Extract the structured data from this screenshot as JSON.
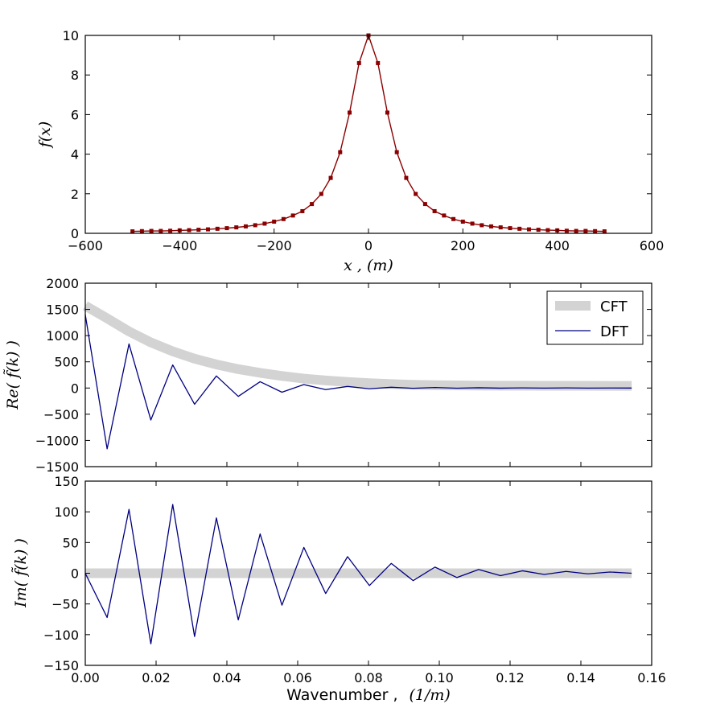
{
  "chart_data": [
    {
      "id": "top",
      "type": "line",
      "xlim": [
        -600,
        600
      ],
      "ylim": [
        0,
        10
      ],
      "xticks": [
        -600,
        -400,
        -200,
        0,
        200,
        400,
        600
      ],
      "yticks": [
        0,
        2,
        4,
        6,
        8,
        10
      ],
      "xtick_labels": [
        "−600",
        "−400",
        "−200",
        "0",
        "200",
        "400",
        "600"
      ],
      "ytick_labels": [
        "0",
        "2",
        "4",
        "6",
        "8",
        "10"
      ],
      "xlabel": "x ,  (m)",
      "ylabel": "f(x)",
      "series": [
        {
          "name": "f(x)",
          "color": "#8b0000",
          "marker": "square",
          "x": [
            -500,
            -480,
            -460,
            -440,
            -420,
            -400,
            -380,
            -360,
            -340,
            -320,
            -300,
            -280,
            -260,
            -240,
            -220,
            -200,
            -180,
            -160,
            -140,
            -120,
            -100,
            -80,
            -60,
            -40,
            -20,
            0,
            20,
            40,
            60,
            80,
            100,
            120,
            140,
            160,
            180,
            200,
            220,
            240,
            260,
            280,
            300,
            320,
            340,
            360,
            380,
            400,
            420,
            440,
            460,
            480,
            500
          ],
          "y": [
            0.1,
            0.11,
            0.12,
            0.12,
            0.13,
            0.15,
            0.16,
            0.18,
            0.2,
            0.23,
            0.26,
            0.3,
            0.35,
            0.41,
            0.49,
            0.59,
            0.72,
            0.9,
            1.12,
            1.48,
            1.99,
            2.8,
            4.1,
            6.1,
            8.6,
            10.0,
            8.6,
            6.1,
            4.1,
            2.8,
            1.99,
            1.48,
            1.12,
            0.9,
            0.72,
            0.59,
            0.49,
            0.41,
            0.35,
            0.3,
            0.26,
            0.23,
            0.2,
            0.18,
            0.16,
            0.15,
            0.13,
            0.12,
            0.12,
            0.11,
            0.1
          ]
        }
      ]
    },
    {
      "id": "middle",
      "type": "line",
      "xlim": [
        0,
        0.16
      ],
      "ylim": [
        -1500,
        2000
      ],
      "xticks": [
        0,
        0.02,
        0.04,
        0.06,
        0.08,
        0.1,
        0.12,
        0.14,
        0.16
      ],
      "yticks": [
        -1500,
        -1000,
        -500,
        0,
        500,
        1000,
        1500,
        2000
      ],
      "ytick_labels": [
        "−1500",
        "−1000",
        "−500",
        "0",
        "500",
        "1000",
        "1500",
        "2000"
      ],
      "ylabel": "Re( f̃(k) )",
      "legend": {
        "position": "top-right",
        "entries": [
          "CFT",
          "DFT"
        ]
      },
      "series": [
        {
          "name": "CFT",
          "color": "#d3d3d3",
          "style": "thick",
          "x": [
            0,
            0.00617,
            0.01235,
            0.01852,
            0.0247,
            0.03087,
            0.03704,
            0.04322,
            0.04939,
            0.05556,
            0.06174,
            0.06791,
            0.07409,
            0.08026,
            0.08643,
            0.09261,
            0.09878,
            0.10496,
            0.11113,
            0.1173,
            0.12348,
            0.12965,
            0.13583,
            0.142,
            0.14817,
            0.15435
          ],
          "y": [
            1570,
            1330,
            1080,
            870,
            700,
            560,
            450,
            360,
            290,
            230,
            180,
            145,
            115,
            92,
            75,
            62,
            55,
            50,
            47,
            45,
            44,
            43,
            42,
            42,
            41,
            41
          ]
        },
        {
          "name": "DFT",
          "color": "#000080",
          "style": "thin",
          "x": [
            0,
            0.00617,
            0.01235,
            0.01852,
            0.0247,
            0.03087,
            0.03704,
            0.04322,
            0.04939,
            0.05556,
            0.06174,
            0.06791,
            0.07409,
            0.08026,
            0.08643,
            0.09261,
            0.09878,
            0.10496,
            0.11113,
            0.1173,
            0.12348,
            0.12965,
            0.13583,
            0.142,
            0.14817,
            0.15435
          ],
          "y": [
            1400,
            -1160,
            840,
            -610,
            440,
            -310,
            230,
            -160,
            120,
            -80,
            65,
            -30,
            30,
            -15,
            15,
            -5,
            10,
            -3,
            5,
            -2,
            3,
            -1,
            2,
            -1,
            1,
            0
          ]
        }
      ]
    },
    {
      "id": "bottom",
      "type": "line",
      "xlim": [
        0,
        0.16
      ],
      "ylim": [
        -150,
        150
      ],
      "xticks": [
        0,
        0.02,
        0.04,
        0.06,
        0.08,
        0.1,
        0.12,
        0.14,
        0.16
      ],
      "xtick_labels": [
        "0.00",
        "0.02",
        "0.04",
        "0.06",
        "0.08",
        "0.10",
        "0.12",
        "0.14",
        "0.16"
      ],
      "yticks": [
        -150,
        -100,
        -50,
        0,
        50,
        100,
        150
      ],
      "ytick_labels": [
        "−150",
        "−100",
        "−50",
        "0",
        "50",
        "100",
        "150"
      ],
      "xlabel_text": "Wavenumber ,",
      "xlabel_math": "(1/m)",
      "ylabel": "Im( f̃(k) )",
      "series": [
        {
          "name": "CFT",
          "color": "#d3d3d3",
          "style": "thick",
          "x": [
            0,
            0.15435
          ],
          "y": [
            0,
            0
          ]
        },
        {
          "name": "DFT",
          "color": "#000080",
          "style": "thin",
          "x": [
            0,
            0.00617,
            0.01235,
            0.01852,
            0.0247,
            0.03087,
            0.03704,
            0.04322,
            0.04939,
            0.05556,
            0.06174,
            0.06791,
            0.07409,
            0.08026,
            0.08643,
            0.09261,
            0.09878,
            0.10496,
            0.11113,
            0.1173,
            0.12348,
            0.12965,
            0.13583,
            0.142,
            0.14817,
            0.15435
          ],
          "y": [
            0,
            -72,
            104,
            -115,
            112,
            -103,
            90,
            -76,
            64,
            -52,
            42,
            -33,
            27,
            -20,
            16,
            -12,
            10,
            -7,
            6,
            -4,
            4,
            -2,
            3,
            -1,
            2,
            0
          ]
        }
      ]
    }
  ]
}
